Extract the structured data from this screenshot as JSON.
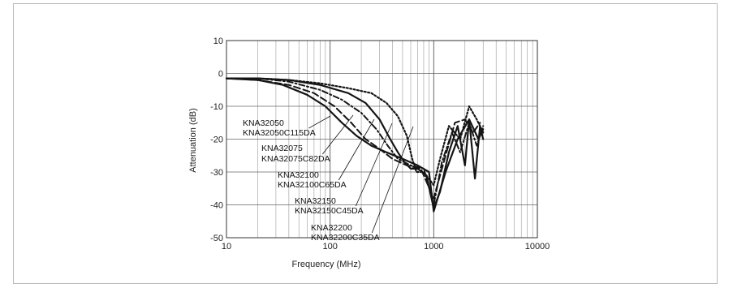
{
  "chart_data": {
    "type": "line",
    "title": "",
    "xlabel": "Frequency (MHz)",
    "ylabel": "Attenuation (dB)",
    "xscale": "log",
    "xlim": [
      10,
      10000
    ],
    "ylim": [
      -50,
      10
    ],
    "x_ticks": [
      "10",
      "100",
      "1000",
      "10000"
    ],
    "y_ticks": [
      "10",
      "0",
      "-10",
      "-20",
      "-30",
      "-40",
      "-50"
    ],
    "grid": true,
    "legend": "none",
    "annotations": [
      "KNA32050",
      "KNA32050C115DA",
      "KNA32075",
      "KNA32075C82DA",
      "KNA32100",
      "KNA32100C65DA",
      "KNA32150",
      "KNA32150C45DA",
      "KNA32200",
      "KNA32200C35DA"
    ],
    "series": [
      {
        "line_style": "dotted",
        "x": [
          10,
          20,
          40,
          80,
          150,
          250,
          350,
          450,
          550,
          620,
          680,
          800,
          1000,
          1150,
          1400,
          1800,
          2200,
          2600,
          3000
        ],
        "y": [
          -1.5,
          -1.5,
          -2,
          -3,
          -4.5,
          -6,
          -9,
          -13,
          -19,
          -26,
          -30,
          -30,
          -34,
          -26,
          -16,
          -20,
          -10,
          -14,
          -18
        ]
      },
      {
        "line_style": "solid",
        "x": [
          10,
          20,
          40,
          80,
          150,
          220,
          300,
          380,
          450,
          520,
          600,
          700,
          850,
          1000,
          1150,
          1400,
          1700,
          2000,
          2200,
          2500,
          2800,
          3000
        ],
        "y": [
          -1.5,
          -1.5,
          -2,
          -3.5,
          -6,
          -9,
          -14,
          -20,
          -24,
          -27,
          -29,
          -29,
          -31,
          -41,
          -36,
          -24,
          -16,
          -28,
          -14,
          -32,
          -16,
          -20
        ]
      },
      {
        "line_style": "dash-dot",
        "x": [
          10,
          20,
          40,
          80,
          130,
          200,
          280,
          360,
          450,
          600,
          800,
          1000,
          1200,
          1500,
          1800,
          2200,
          2600,
          3000
        ],
        "y": [
          -1.5,
          -1.5,
          -2.5,
          -5,
          -8,
          -12,
          -17,
          -22,
          -26,
          -28,
          -29,
          -40,
          -27,
          -18,
          -24,
          -15,
          -22,
          -16
        ]
      },
      {
        "line_style": "long-dash",
        "x": [
          10,
          20,
          40,
          70,
          110,
          160,
          220,
          300,
          400,
          550,
          750,
          1000,
          1300,
          1600,
          2000,
          2400,
          2800
        ],
        "y": [
          -1.5,
          -2,
          -3.5,
          -6,
          -10,
          -15,
          -20,
          -23,
          -26,
          -28,
          -29,
          -38,
          -25,
          -15,
          -14,
          -18,
          -15
        ]
      },
      {
        "line_style": "solid",
        "x": [
          10,
          20,
          35,
          60,
          90,
          130,
          180,
          250,
          350,
          500,
          700,
          900,
          1000,
          1300,
          1700,
          2200,
          2700,
          3000
        ],
        "y": [
          -1.5,
          -2,
          -3.5,
          -6.5,
          -10,
          -15,
          -19,
          -22,
          -24,
          -26,
          -28,
          -30,
          -42,
          -30,
          -20,
          -14,
          -20,
          -17
        ]
      }
    ]
  }
}
